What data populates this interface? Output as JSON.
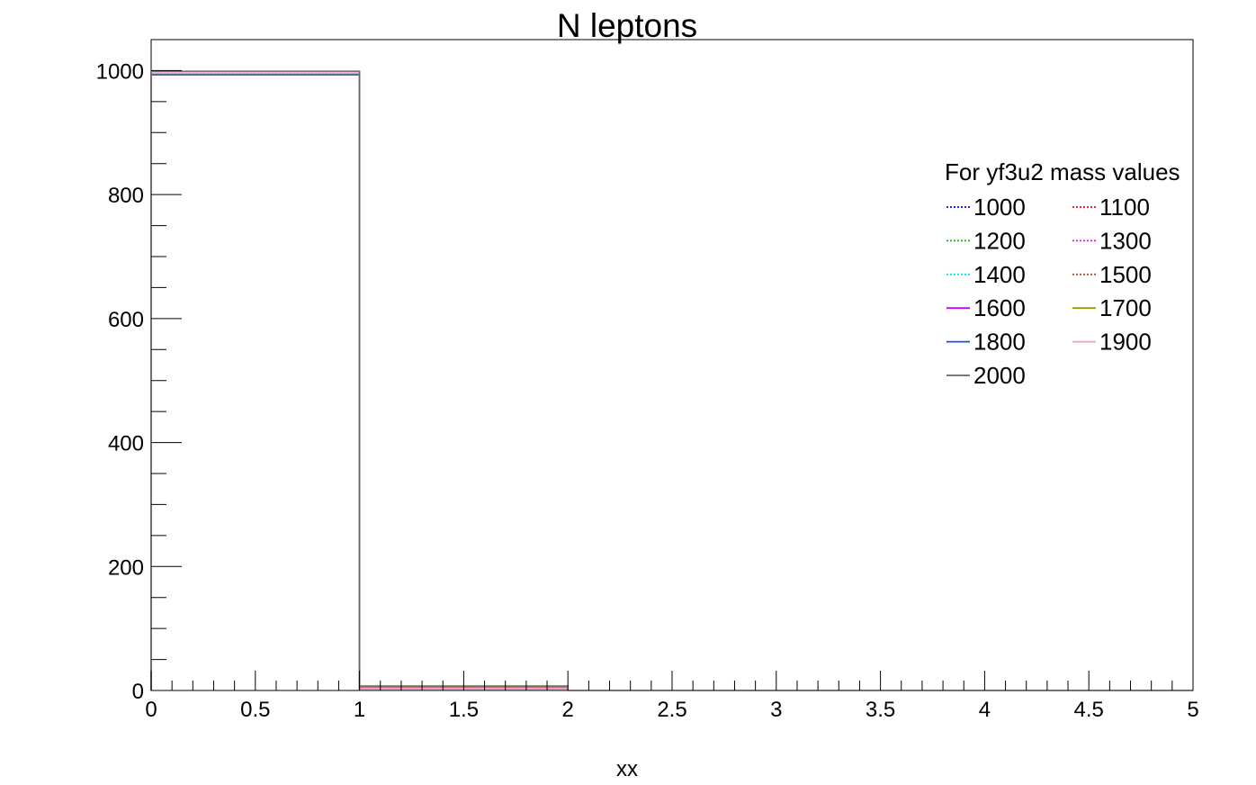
{
  "chart_data": {
    "type": "histogram",
    "title": "N leptons",
    "xlabel": "xx",
    "ylabel": "",
    "xlim": [
      0,
      5
    ],
    "ylim": [
      0,
      1050
    ],
    "x_ticks": [
      "0",
      "0.5",
      "1",
      "1.5",
      "2",
      "2.5",
      "3",
      "3.5",
      "4",
      "4.5",
      "5"
    ],
    "y_ticks": [
      "0",
      "200",
      "400",
      "600",
      "800",
      "1000"
    ],
    "bin_edges": [
      0,
      1,
      2,
      3,
      4,
      5
    ],
    "legend": {
      "title": "For yf3u2 mass values",
      "columns": 2,
      "placement": "upper-right"
    },
    "series": [
      {
        "name": "1000",
        "color": "#0000ff",
        "style": "dotted",
        "values": [
          996,
          4,
          0,
          0,
          0
        ]
      },
      {
        "name": "1100",
        "color": "#ff0000",
        "style": "dotted",
        "values": [
          995,
          5,
          0,
          0,
          0
        ]
      },
      {
        "name": "1200",
        "color": "#00c000",
        "style": "dotted",
        "values": [
          995,
          5,
          0,
          0,
          0
        ]
      },
      {
        "name": "1300",
        "color": "#ff00ff",
        "style": "dotted",
        "values": [
          994,
          6,
          0,
          0,
          0
        ]
      },
      {
        "name": "1400",
        "color": "#00e5e5",
        "style": "dotted",
        "values": [
          994,
          6,
          0,
          0,
          0
        ]
      },
      {
        "name": "1500",
        "color": "#a0522d",
        "style": "dotted",
        "values": [
          993,
          7,
          0,
          0,
          0
        ]
      },
      {
        "name": "1600",
        "color": "#cc00ff",
        "style": "solid",
        "values": [
          993,
          7,
          0,
          0,
          0
        ]
      },
      {
        "name": "1700",
        "color": "#999900",
        "style": "solid",
        "values": [
          994,
          6,
          0,
          0,
          0
        ]
      },
      {
        "name": "1800",
        "color": "#1a4fd6",
        "style": "solid",
        "values": [
          995,
          5,
          0,
          0,
          0
        ]
      },
      {
        "name": "1900",
        "color": "#ff99cc",
        "style": "solid",
        "values": [
          996,
          4,
          0,
          0,
          0
        ]
      },
      {
        "name": "2000",
        "color": "#666666",
        "style": "solid",
        "values": [
          999,
          1,
          0,
          0,
          0
        ]
      }
    ]
  }
}
